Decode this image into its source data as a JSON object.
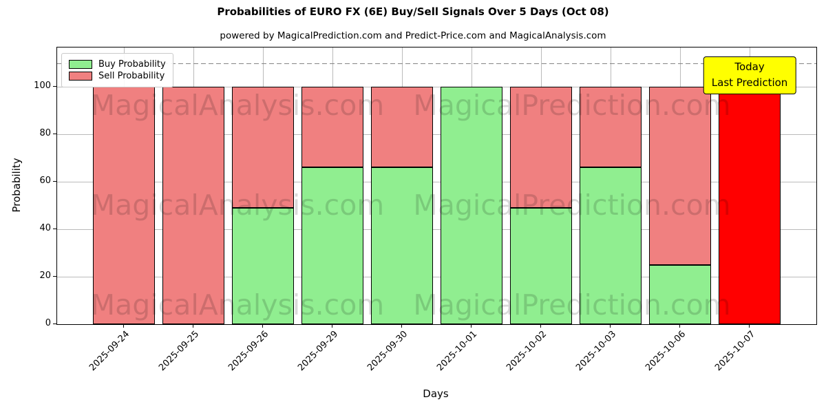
{
  "chart_data": {
    "type": "bar",
    "stacked": true,
    "title": "Probabilities of EURO FX (6E) Buy/Sell Signals Over 5 Days (Oct 08)",
    "subtitle": "powered by MagicalPrediction.com and Predict-Price.com and MagicalAnalysis.com",
    "xlabel": "Days",
    "ylabel": "Probability",
    "categories": [
      "2025-09-24",
      "2025-09-25",
      "2025-09-26",
      "2025-09-29",
      "2025-09-30",
      "2025-10-01",
      "2025-10-02",
      "2025-10-03",
      "2025-10-06",
      "2025-10-07"
    ],
    "series": [
      {
        "name": "Buy Probability",
        "color": "#90EE90",
        "values": [
          0,
          0,
          49,
          66,
          66,
          100,
          49,
          66,
          25,
          0
        ]
      },
      {
        "name": "Sell Probability",
        "color": "#F08080",
        "values": [
          100,
          100,
          51,
          34,
          34,
          0,
          51,
          34,
          75,
          100
        ]
      }
    ],
    "yticks": [
      0,
      20,
      40,
      60,
      80,
      100
    ],
    "ylim": [
      0,
      116.6
    ],
    "grid": true,
    "legend_position": "upper left",
    "dashed_line_y": 110,
    "dashed_line_color": "#848484",
    "today": {
      "index": 9,
      "bar_color": "#FF0000",
      "box_color": "#FFFF00",
      "label_line1": "Today",
      "label_line2": "Last Prediction"
    },
    "watermarks": {
      "left": "MagicalAnalysis.com",
      "right": "MagicalPrediction.com"
    }
  }
}
